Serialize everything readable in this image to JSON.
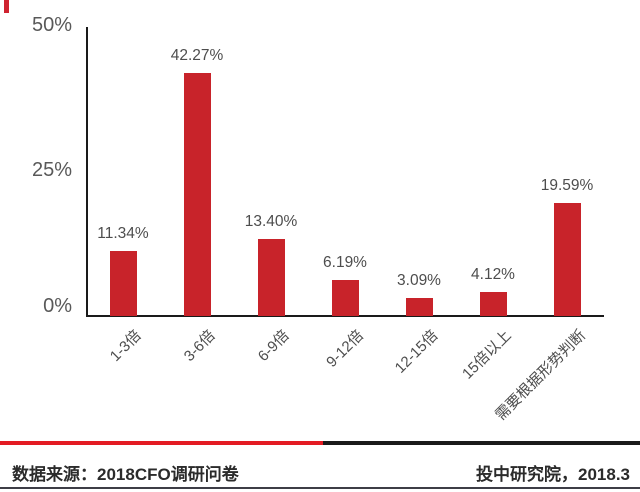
{
  "chart_data": {
    "type": "bar",
    "title": "",
    "categories": [
      "1-3倍",
      "3-6倍",
      "6-9倍",
      "9-12倍",
      "12-15倍",
      "15倍以上",
      "需要根据形势判断"
    ],
    "values": [
      11.34,
      42.27,
      13.4,
      6.19,
      3.09,
      4.12,
      19.59
    ],
    "value_labels": [
      "11.34%",
      "42.27%",
      "13.40%",
      "6.19%",
      "3.09%",
      "4.12%",
      "19.59%"
    ],
    "y_ticks": [
      "0%",
      "25%",
      "50%"
    ],
    "ylim": [
      0,
      50
    ],
    "xlabel": "",
    "ylabel": "",
    "grid": false,
    "legend": false,
    "bar_color": "#c8232a",
    "axis_color": "#1a1a1a",
    "value_label_color": "#4d4d4d",
    "tick_label_color": "#595959"
  },
  "accents": {
    "corner_dash_color": "#cf2330"
  },
  "footer": {
    "source": "数据来源：2018CFO调研问卷",
    "credit": "投中研究院，2018.3",
    "divider_red_color": "#e31b23",
    "divider_black_color": "#1a1a1a",
    "bottom_border_color": "#3d3d46",
    "text_color": "#2b2b2b"
  }
}
